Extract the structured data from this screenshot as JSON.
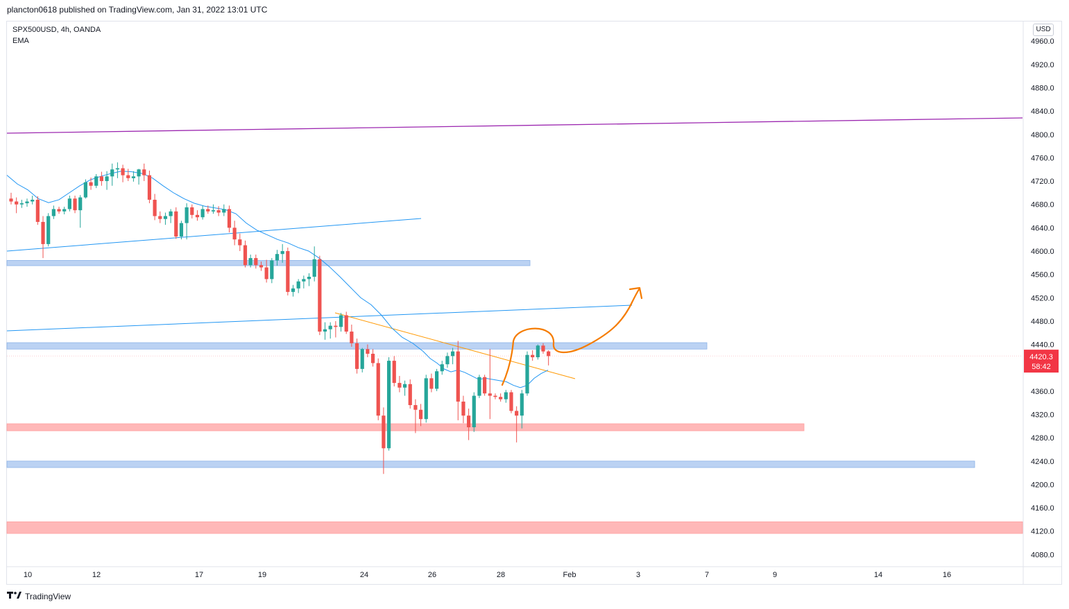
{
  "header": {
    "published": "plancton0618 published on TradingView.com, Jan 31, 2022 13:01 UTC"
  },
  "chart_info": {
    "symbol_line": "SPX500USD, 4h, OANDA",
    "indicator": "EMA"
  },
  "currency": "USD",
  "price_badge": {
    "price": "4420.3",
    "countdown": "58:42",
    "color": "#f23645"
  },
  "footer": {
    "brand": "TradingView",
    "logo": "tradingview-logo"
  },
  "colors": {
    "up": "#26a69a",
    "down": "#ef5350",
    "ema": "#2196f3",
    "blue_zone": "#bbd2f3",
    "red_zone": "#ffb8b8",
    "purple_line": "#9c27b0",
    "blue_line": "#2196f3",
    "orange": "#ff9800",
    "drawing": "#f57c00"
  },
  "chart_data": {
    "type": "candlestick",
    "y_range": [
      4050,
      4990
    ],
    "y_ticks": [
      "4960.0",
      "4920.0",
      "4880.0",
      "4840.0",
      "4800.0",
      "4760.0",
      "4720.0",
      "4680.0",
      "4640.0",
      "4600.0",
      "4560.0",
      "4520.0",
      "4480.0",
      "4440.0",
      "4400.0",
      "4360.0",
      "4320.0",
      "4280.0",
      "4240.0",
      "4200.0",
      "4160.0",
      "4120.0",
      "4080.0"
    ],
    "x_ticks": [
      "10",
      "12",
      "17",
      "19",
      "24",
      "26",
      "28",
      "Feb",
      "3",
      "7",
      "9",
      "14",
      "16"
    ],
    "current_price": 4420.3,
    "candles": [
      [
        4690,
        4700,
        4680,
        4685
      ],
      [
        4685,
        4692,
        4665,
        4680
      ],
      [
        4680,
        4688,
        4674,
        4682
      ],
      [
        4682,
        4690,
        4676,
        4685
      ],
      [
        4685,
        4695,
        4680,
        4688
      ],
      [
        4688,
        4694,
        4645,
        4650
      ],
      [
        4650,
        4660,
        4588,
        4612
      ],
      [
        4612,
        4665,
        4608,
        4660
      ],
      [
        4660,
        4678,
        4655,
        4672
      ],
      [
        4672,
        4676,
        4664,
        4668
      ],
      [
        4668,
        4676,
        4663,
        4672
      ],
      [
        4672,
        4695,
        4668,
        4690
      ],
      [
        4690,
        4695,
        4665,
        4670
      ],
      [
        4670,
        4696,
        4640,
        4692
      ],
      [
        4692,
        4723,
        4690,
        4718
      ],
      [
        4718,
        4726,
        4705,
        4712
      ],
      [
        4712,
        4732,
        4708,
        4728
      ],
      [
        4728,
        4736,
        4712,
        4720
      ],
      [
        4720,
        4737,
        4705,
        4728
      ],
      [
        4728,
        4750,
        4712,
        4740
      ],
      [
        4740,
        4752,
        4725,
        4742
      ],
      [
        4742,
        4748,
        4718,
        4730
      ],
      [
        4730,
        4741,
        4720,
        4725
      ],
      [
        4725,
        4737,
        4719,
        4728
      ],
      [
        4728,
        4741,
        4714,
        4740
      ],
      [
        4740,
        4750,
        4720,
        4730
      ],
      [
        4730,
        4738,
        4682,
        4688
      ],
      [
        4688,
        4698,
        4653,
        4660
      ],
      [
        4660,
        4668,
        4648,
        4655
      ],
      [
        4655,
        4666,
        4645,
        4660
      ],
      [
        4660,
        4672,
        4648,
        4668
      ],
      [
        4668,
        4675,
        4621,
        4625
      ],
      [
        4625,
        4652,
        4620,
        4648
      ],
      [
        4648,
        4682,
        4620,
        4675
      ],
      [
        4675,
        4680,
        4656,
        4662
      ],
      [
        4662,
        4670,
        4652,
        4658
      ],
      [
        4658,
        4678,
        4654,
        4672
      ],
      [
        4672,
        4678,
        4664,
        4668
      ],
      [
        4668,
        4680,
        4664,
        4670
      ],
      [
        4670,
        4677,
        4660,
        4666
      ],
      [
        4666,
        4680,
        4660,
        4672
      ],
      [
        4672,
        4678,
        4632,
        4640
      ],
      [
        4640,
        4652,
        4610,
        4620
      ],
      [
        4620,
        4630,
        4600,
        4610
      ],
      [
        4610,
        4618,
        4572,
        4576
      ],
      [
        4576,
        4594,
        4572,
        4588
      ],
      [
        4588,
        4594,
        4570,
        4576
      ],
      [
        4576,
        4582,
        4566,
        4572
      ],
      [
        4572,
        4585,
        4546,
        4552
      ],
      [
        4552,
        4588,
        4545,
        4584
      ],
      [
        4584,
        4602,
        4575,
        4595
      ],
      [
        4595,
        4612,
        4580,
        4600
      ],
      [
        4600,
        4606,
        4524,
        4530
      ],
      [
        4530,
        4542,
        4522,
        4536
      ],
      [
        4536,
        4552,
        4528,
        4548
      ],
      [
        4548,
        4558,
        4536,
        4552
      ],
      [
        4552,
        4562,
        4540,
        4556
      ],
      [
        4556,
        4608,
        4548,
        4586
      ],
      [
        4586,
        4592,
        4456,
        4462
      ],
      [
        4462,
        4478,
        4448,
        4466
      ],
      [
        4466,
        4478,
        4450,
        4472
      ],
      [
        4472,
        4480,
        4452,
        4470
      ],
      [
        4470,
        4494,
        4462,
        4490
      ],
      [
        4490,
        4496,
        4458,
        4462
      ],
      [
        4462,
        4474,
        4436,
        4442
      ],
      [
        4442,
        4450,
        4390,
        4398
      ],
      [
        4398,
        4434,
        4392,
        4432
      ],
      [
        4432,
        4440,
        4418,
        4424
      ],
      [
        4424,
        4432,
        4402,
        4408
      ],
      [
        4408,
        4416,
        4310,
        4318
      ],
      [
        4318,
        4332,
        4218,
        4262
      ],
      [
        4262,
        4418,
        4258,
        4412
      ],
      [
        4412,
        4420,
        4368,
        4374
      ],
      [
        4374,
        4386,
        4358,
        4366
      ],
      [
        4366,
        4378,
        4352,
        4372
      ],
      [
        4372,
        4380,
        4330,
        4336
      ],
      [
        4336,
        4346,
        4288,
        4328
      ],
      [
        4328,
        4338,
        4300,
        4312
      ],
      [
        4312,
        4388,
        4306,
        4382
      ],
      [
        4382,
        4390,
        4358,
        4364
      ],
      [
        4364,
        4398,
        4360,
        4394
      ],
      [
        4394,
        4412,
        4388,
        4406
      ],
      [
        4406,
        4426,
        4400,
        4420
      ],
      [
        4420,
        4434,
        4406,
        4428
      ],
      [
        4428,
        4446,
        4310,
        4342
      ],
      [
        4342,
        4352,
        4305,
        4318
      ],
      [
        4318,
        4330,
        4276,
        4298
      ],
      [
        4298,
        4358,
        4290,
        4352
      ],
      [
        4352,
        4388,
        4348,
        4384
      ],
      [
        4384,
        4388,
        4352,
        4356
      ],
      [
        4356,
        4432,
        4312,
        4352
      ],
      [
        4352,
        4356,
        4346,
        4350
      ],
      [
        4350,
        4356,
        4342,
        4346
      ],
      [
        4346,
        4362,
        4340,
        4358
      ],
      [
        4358,
        4362,
        4322,
        4326
      ],
      [
        4326,
        4334,
        4272,
        4318
      ],
      [
        4318,
        4362,
        4296,
        4356
      ],
      [
        4356,
        4428,
        4352,
        4422
      ],
      [
        4422,
        4430,
        4412,
        4418
      ],
      [
        4418,
        4440,
        4414,
        4438
      ],
      [
        4438,
        4442,
        4424,
        4428
      ],
      [
        4428,
        4430,
        4404,
        4420
      ]
    ],
    "ema": [
      [
        0,
        4730
      ],
      [
        15,
        4715
      ],
      [
        30,
        4705
      ],
      [
        45,
        4690
      ],
      [
        60,
        4683
      ],
      [
        75,
        4688
      ],
      [
        90,
        4700
      ],
      [
        105,
        4712
      ],
      [
        120,
        4722
      ],
      [
        135,
        4728
      ],
      [
        150,
        4733
      ],
      [
        165,
        4737
      ],
      [
        180,
        4736
      ],
      [
        195,
        4733
      ],
      [
        210,
        4725
      ],
      [
        225,
        4712
      ],
      [
        240,
        4700
      ],
      [
        255,
        4690
      ],
      [
        270,
        4682
      ],
      [
        285,
        4677
      ],
      [
        300,
        4674
      ],
      [
        315,
        4671
      ],
      [
        330,
        4664
      ],
      [
        345,
        4648
      ],
      [
        360,
        4636
      ],
      [
        375,
        4628
      ],
      [
        390,
        4620
      ],
      [
        405,
        4614
      ],
      [
        420,
        4606
      ],
      [
        435,
        4600
      ],
      [
        450,
        4588
      ],
      [
        465,
        4573
      ],
      [
        480,
        4556
      ],
      [
        495,
        4538
      ],
      [
        510,
        4520
      ],
      [
        525,
        4508
      ],
      [
        540,
        4490
      ],
      [
        555,
        4468
      ],
      [
        570,
        4452
      ],
      [
        585,
        4442
      ],
      [
        600,
        4428
      ],
      [
        610,
        4416
      ],
      [
        620,
        4408
      ],
      [
        630,
        4398
      ],
      [
        640,
        4393
      ],
      [
        650,
        4396
      ],
      [
        660,
        4392
      ],
      [
        670,
        4386
      ],
      [
        680,
        4380
      ],
      [
        690,
        4382
      ],
      [
        700,
        4380
      ],
      [
        710,
        4378
      ],
      [
        720,
        4376
      ],
      [
        730,
        4370
      ],
      [
        740,
        4366
      ],
      [
        750,
        4370
      ],
      [
        760,
        4382
      ],
      [
        770,
        4390
      ],
      [
        780,
        4396
      ]
    ]
  }
}
